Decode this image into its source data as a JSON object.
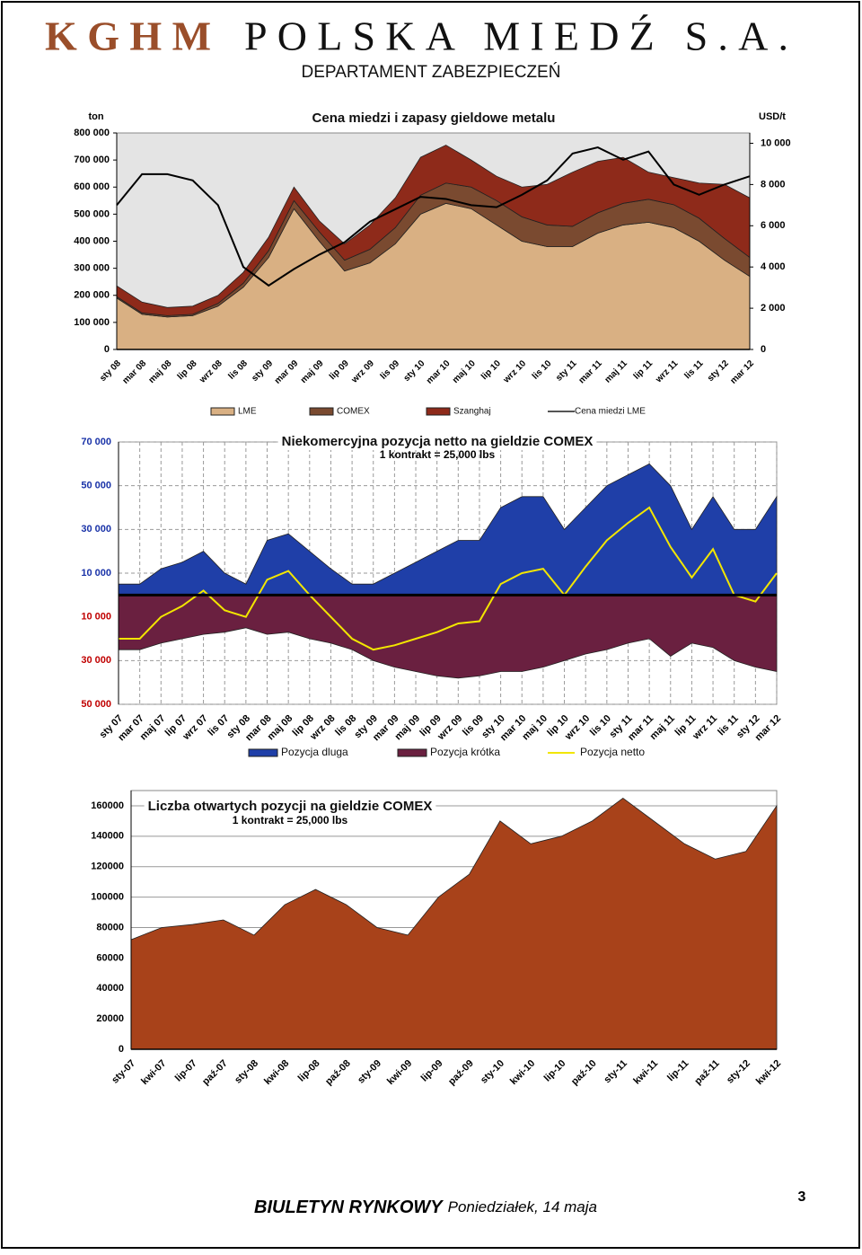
{
  "header": {
    "logo": "KGHM",
    "company": "POLSKA MIEDŹ S.A.",
    "department": "DEPARTAMENT ZABEZPIECZEŃ"
  },
  "chart_data": [
    {
      "type": "area",
      "stacked": true,
      "title": "Cena miedzi i zapasy gieldowe metalu",
      "ylabel": "ton",
      "y2label": "USD/t",
      "categories": [
        "sty 08",
        "mar 08",
        "maj 08",
        "lip 08",
        "wrz 08",
        "lis 08",
        "sty 09",
        "mar 09",
        "maj 09",
        "lip 09",
        "wrz 09",
        "lis 09",
        "sty 10",
        "mar 10",
        "maj 10",
        "lip 10",
        "wrz 10",
        "lis 10",
        "sty 11",
        "mar 11",
        "maj 11",
        "lip 11",
        "wrz 11",
        "lis 11",
        "sty 12",
        "mar 12"
      ],
      "series": [
        {
          "name": "LME",
          "type": "area",
          "color": "#d9b083",
          "values": [
            190000,
            130000,
            120000,
            125000,
            160000,
            230000,
            340000,
            520000,
            400000,
            290000,
            320000,
            390000,
            500000,
            540000,
            520000,
            460000,
            400000,
            380000,
            380000,
            430000,
            460000,
            470000,
            450000,
            400000,
            330000,
            270000
          ]
        },
        {
          "name": "COMEX",
          "type": "area",
          "color": "#7a4a30",
          "values": [
            5000,
            5000,
            5000,
            5000,
            10000,
            15000,
            25000,
            30000,
            35000,
            40000,
            50000,
            60000,
            70000,
            75000,
            80000,
            90000,
            90000,
            80000,
            75000,
            75000,
            80000,
            85000,
            85000,
            85000,
            80000,
            70000
          ]
        },
        {
          "name": "Szanghaj",
          "type": "area",
          "color": "#8e2a1a",
          "values": [
            40000,
            40000,
            30000,
            30000,
            30000,
            40000,
            50000,
            50000,
            40000,
            60000,
            90000,
            110000,
            140000,
            140000,
            100000,
            90000,
            110000,
            150000,
            200000,
            190000,
            170000,
            100000,
            100000,
            130000,
            200000,
            220000
          ]
        },
        {
          "name": "Cena miedzi LME",
          "type": "line",
          "axis": "y2",
          "color": "#000000",
          "values": [
            7000,
            8500,
            8500,
            8200,
            7000,
            4000,
            3100,
            3900,
            4600,
            5200,
            6200,
            6800,
            7400,
            7300,
            7000,
            6900,
            7500,
            8200,
            9500,
            9800,
            9200,
            9600,
            8000,
            7500,
            8000,
            8400
          ]
        }
      ],
      "ylim": [
        0,
        800000
      ],
      "yticks": [
        0,
        {
          "value": 100000,
          "label": "100 000"
        },
        {
          "value": 200000,
          "label": "200 000"
        },
        {
          "value": 300000,
          "label": "300 000"
        },
        {
          "value": 400000,
          "label": "400 000"
        },
        {
          "value": 500000,
          "label": "500 000"
        },
        {
          "value": 600000,
          "label": "600 000"
        },
        {
          "value": 700000,
          "label": "700 000"
        },
        {
          "value": 800000,
          "label": "800 000"
        }
      ],
      "y2lim": [
        0,
        10500
      ],
      "y2ticks": [
        0,
        {
          "value": 2000,
          "label": "2 000"
        },
        {
          "value": 4000,
          "label": "4 000"
        },
        {
          "value": 6000,
          "label": "6 000"
        },
        {
          "value": 8000,
          "label": "8 000"
        },
        {
          "value": 10000,
          "label": "10 000"
        }
      ],
      "grid": false
    },
    {
      "type": "area",
      "stacked": false,
      "title": "Niekomercyjna pozycja netto na gieldzie COMEX",
      "subtitle": "1 kontrakt = 25,000 lbs",
      "categories": [
        "sty 07",
        "mar 07",
        "maj 07",
        "lip 07",
        "wrz 07",
        "lis 07",
        "sty 08",
        "mar 08",
        "maj 08",
        "lip 08",
        "wrz 08",
        "lis 08",
        "sty 09",
        "mar 09",
        "maj 09",
        "lip 09",
        "wrz 09",
        "lis 09",
        "sty 10",
        "mar 10",
        "maj 10",
        "lip 10",
        "wrz 10",
        "lis 10",
        "sty 11",
        "mar 11",
        "maj 11",
        "lip 11",
        "wrz 11",
        "lis 11",
        "sty 12",
        "mar 12"
      ],
      "series": [
        {
          "name": "Pozycja dluga",
          "type": "area",
          "color": "#1f3fa8",
          "values": [
            5000,
            5000,
            12000,
            15000,
            20000,
            10000,
            5000,
            25000,
            28000,
            20000,
            12000,
            5000,
            5000,
            10000,
            15000,
            20000,
            25000,
            25000,
            40000,
            45000,
            45000,
            30000,
            40000,
            50000,
            55000,
            60000,
            50000,
            30000,
            45000,
            30000,
            30000,
            45000
          ]
        },
        {
          "name": "Pozycja krótka",
          "type": "area",
          "color": "#6a2040",
          "values": [
            -25000,
            -25000,
            -22000,
            -20000,
            -18000,
            -17000,
            -15000,
            -18000,
            -17000,
            -20000,
            -22000,
            -25000,
            -30000,
            -33000,
            -35000,
            -37000,
            -38000,
            -37000,
            -35000,
            -35000,
            -33000,
            -30000,
            -27000,
            -25000,
            -22000,
            -20000,
            -28000,
            -22000,
            -24000,
            -30000,
            -33000,
            -35000
          ]
        },
        {
          "name": "Pozycja netto",
          "type": "line",
          "color": "#f2e600",
          "values": [
            -20000,
            -20000,
            -10000,
            -5000,
            2000,
            -7000,
            -10000,
            7000,
            11000,
            0,
            -10000,
            -20000,
            -25000,
            -23000,
            -20000,
            -17000,
            -13000,
            -12000,
            5000,
            10000,
            12000,
            0,
            13000,
            25000,
            33000,
            40000,
            22000,
            8000,
            21000,
            0,
            -3000,
            10000
          ]
        }
      ],
      "ylim": [
        -50000,
        70000
      ],
      "yticks": [
        {
          "value": 70000,
          "label": "70 000"
        },
        {
          "value": 50000,
          "label": "50 000"
        },
        {
          "value": 30000,
          "label": "30 000"
        },
        {
          "value": 10000,
          "label": "10 000"
        },
        {
          "value": -10000,
          "label": "10 000"
        },
        {
          "value": -30000,
          "label": "30 000"
        },
        {
          "value": -50000,
          "label": "50 000"
        }
      ],
      "grid": true
    },
    {
      "type": "area",
      "title": "Liczba otwartych pozycji na gieldzie COMEX",
      "subtitle": "1 kontrakt = 25,000 lbs",
      "categories": [
        "sty-07",
        "kwi-07",
        "lip-07",
        "paź-07",
        "sty-08",
        "kwi-08",
        "lip-08",
        "paź-08",
        "sty-09",
        "kwi-09",
        "lip-09",
        "paź-09",
        "sty-10",
        "kwi-10",
        "lip-10",
        "paź-10",
        "sty-11",
        "kwi-11",
        "lip-11",
        "paź-11",
        "sty-12",
        "kwi-12"
      ],
      "color": "#a8421a",
      "values": [
        72000,
        80000,
        82000,
        85000,
        75000,
        95000,
        105000,
        95000,
        80000,
        75000,
        100000,
        115000,
        150000,
        135000,
        140000,
        150000,
        165000,
        150000,
        135000,
        125000,
        130000,
        160000
      ],
      "ylim": [
        0,
        170000
      ],
      "yticks": [
        0,
        20000,
        40000,
        60000,
        80000,
        100000,
        120000,
        140000,
        160000
      ],
      "grid": true
    }
  ],
  "footer": {
    "title": "BIULETYN RYNKOWY",
    "date": "Poniedziałek, 14 maja",
    "page": "3"
  }
}
